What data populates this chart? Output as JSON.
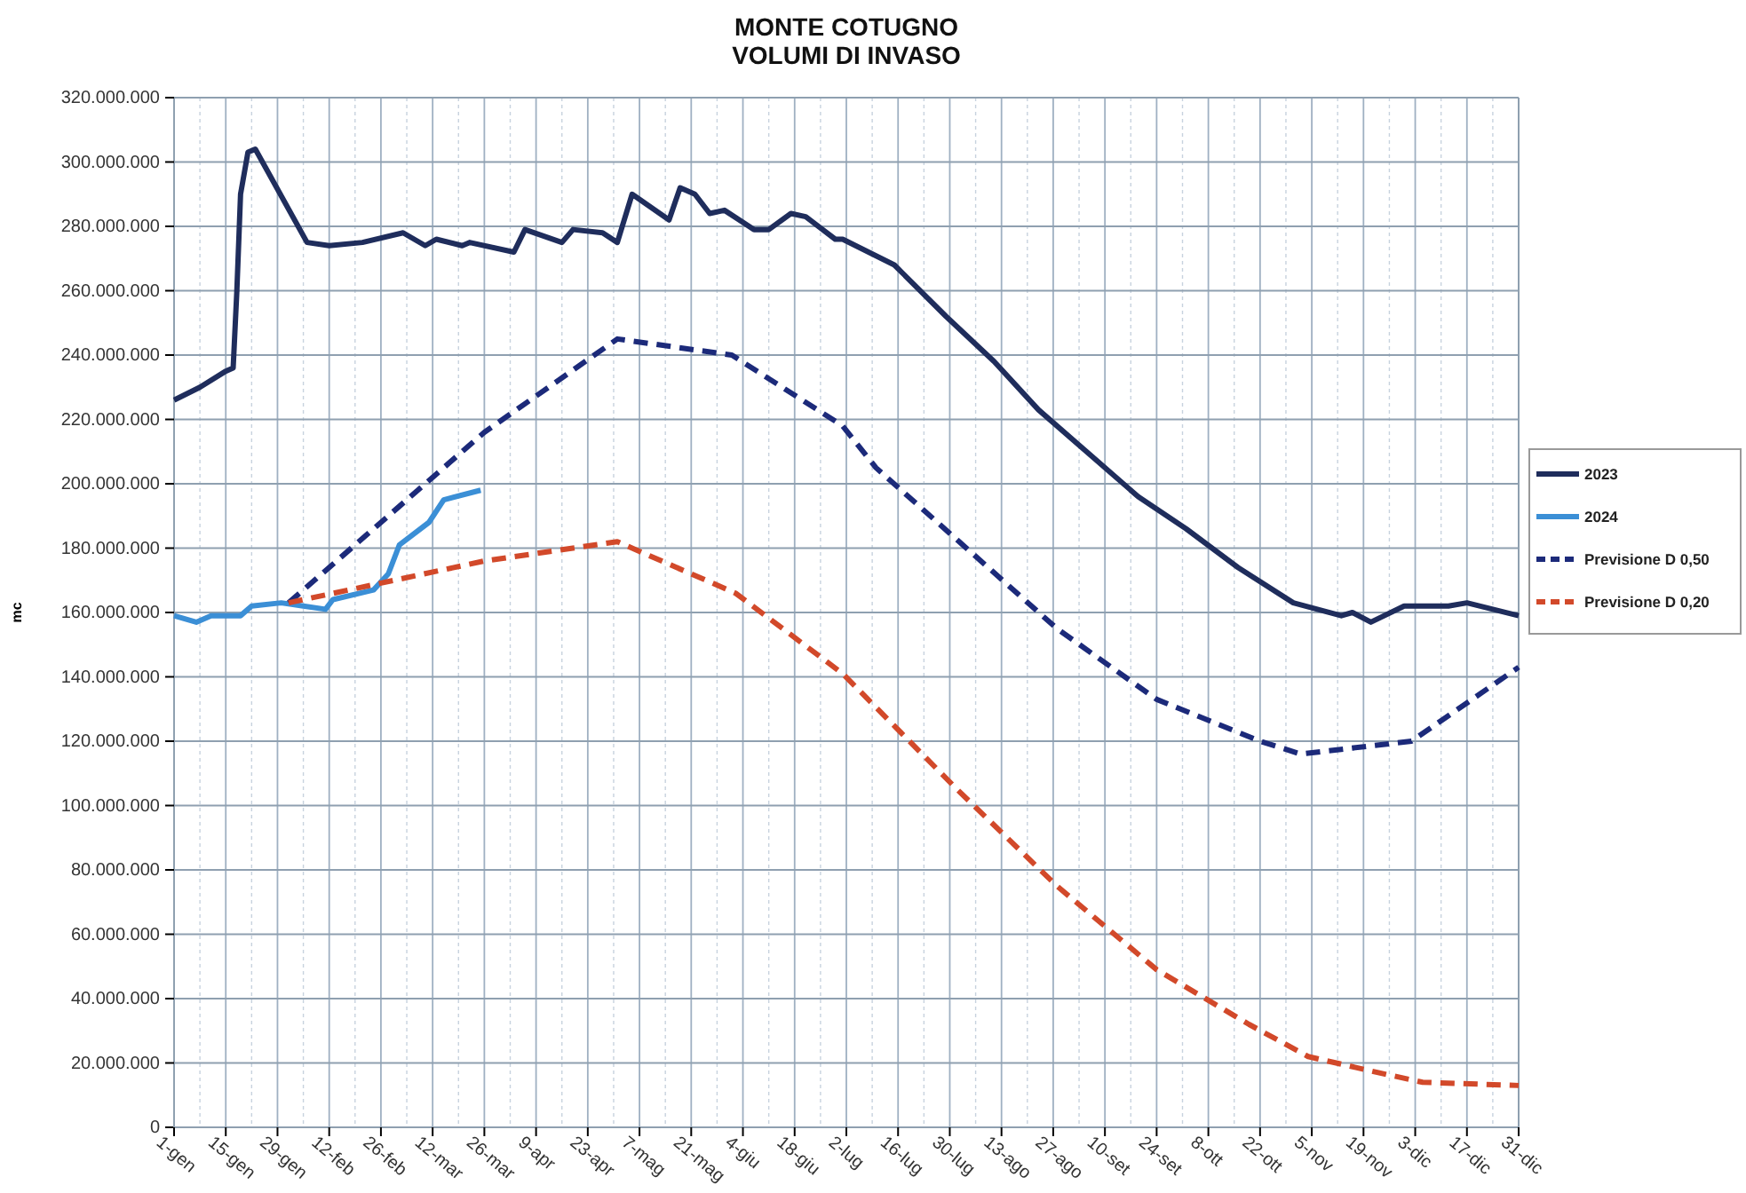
{
  "chart_data": {
    "type": "line",
    "title": "MONTE COTUGNO\nVOLUMI DI INVASO",
    "ylabel": "mc",
    "xlim": [
      "--01-01",
      "--12-31"
    ],
    "xticks": [
      {
        "value": "--01-01",
        "label": "1-gen"
      },
      {
        "value": "--01-15",
        "label": "15-gen"
      },
      {
        "value": "--01-29",
        "label": "29-gen"
      },
      {
        "value": "--02-12",
        "label": "12-feb"
      },
      {
        "value": "--02-26",
        "label": "26-feb"
      },
      {
        "value": "--03-12",
        "label": "12-mar"
      },
      {
        "value": "--03-26",
        "label": "26-mar"
      },
      {
        "value": "--04-09",
        "label": "9-apr"
      },
      {
        "value": "--04-23",
        "label": "23-apr"
      },
      {
        "value": "--05-07",
        "label": "7-mag"
      },
      {
        "value": "--05-21",
        "label": "21-mag"
      },
      {
        "value": "--06-04",
        "label": "4-giu"
      },
      {
        "value": "--06-18",
        "label": "18-giu"
      },
      {
        "value": "--07-02",
        "label": "2-lug"
      },
      {
        "value": "--07-16",
        "label": "16-lug"
      },
      {
        "value": "--07-30",
        "label": "30-lug"
      },
      {
        "value": "--08-13",
        "label": "13-ago"
      },
      {
        "value": "--08-27",
        "label": "27-ago"
      },
      {
        "value": "--09-10",
        "label": "10-set"
      },
      {
        "value": "--09-24",
        "label": "24-set"
      },
      {
        "value": "--10-08",
        "label": "8-ott"
      },
      {
        "value": "--10-22",
        "label": "22-ott"
      },
      {
        "value": "--11-05",
        "label": "5-nov"
      },
      {
        "value": "--11-19",
        "label": "19-nov"
      },
      {
        "value": "--12-03",
        "label": "3-dic"
      },
      {
        "value": "--12-17",
        "label": "17-dic"
      },
      {
        "value": "--12-31",
        "label": "31-dic"
      }
    ],
    "ylim": [
      0,
      320000000
    ],
    "yticks": [
      0,
      {
        "value": 20000000,
        "label": "20.000.000"
      },
      {
        "value": 40000000,
        "label": "40.000.000"
      },
      {
        "value": 60000000,
        "label": "60.000.000"
      },
      {
        "value": 80000000,
        "label": "80.000.000"
      },
      {
        "value": 100000000,
        "label": "100.000.000"
      },
      {
        "value": 120000000,
        "label": "120.000.000"
      },
      {
        "value": 140000000,
        "label": "140.000.000"
      },
      {
        "value": 160000000,
        "label": "160.000.000"
      },
      {
        "value": 180000000,
        "label": "180.000.000"
      },
      {
        "value": 200000000,
        "label": "200.000.000"
      },
      {
        "value": 220000000,
        "label": "220.000.000"
      },
      {
        "value": 240000000,
        "label": "240.000.000"
      },
      {
        "value": 260000000,
        "label": "260.000.000"
      },
      {
        "value": 280000000,
        "label": "280.000.000"
      },
      {
        "value": 300000000,
        "label": "300.000.000"
      },
      {
        "value": 320000000,
        "label": "320.000.000"
      }
    ],
    "grid": true,
    "legend": "right",
    "marker": "none",
    "series": [
      {
        "name": "2023",
        "color": "#1f2d5c",
        "line_style": "solid",
        "x": [
          "--01-01",
          "--01-08",
          "--01-15",
          "--01-17",
          "--01-18",
          "--01-19",
          "--01-21",
          "--01-23",
          "--02-06",
          "--02-12",
          "--02-21",
          "--03-04",
          "--03-10",
          "--03-13",
          "--03-20",
          "--03-22",
          "--04-03",
          "--04-06",
          "--04-16",
          "--04-19",
          "--04-27",
          "--05-01",
          "--05-05",
          "--05-15",
          "--05-18",
          "--05-22",
          "--05-26",
          "--05-30",
          "--06-07",
          "--06-11",
          "--06-17",
          "--06-21",
          "--06-29",
          "--07-01",
          "--07-15",
          "--07-29",
          "--08-11",
          "--08-23",
          "--09-05",
          "--09-19",
          "--10-02",
          "--10-16",
          "--10-31",
          "--11-13",
          "--11-16",
          "--11-21",
          "--11-30",
          "--12-12",
          "--12-17",
          "--12-31"
        ],
        "values": [
          226000000,
          230000000,
          235000000,
          236000000,
          260000000,
          290000000,
          303000000,
          304000000,
          275000000,
          274000000,
          275000000,
          278000000,
          274000000,
          276000000,
          274000000,
          275000000,
          272000000,
          279000000,
          275000000,
          279000000,
          278000000,
          275000000,
          290000000,
          282000000,
          292000000,
          290000000,
          284000000,
          285000000,
          279000000,
          279000000,
          284000000,
          283000000,
          276000000,
          276000000,
          268000000,
          252000000,
          238000000,
          223000000,
          210000000,
          196000000,
          186000000,
          174000000,
          163000000,
          159000000,
          160000000,
          157000000,
          162000000,
          162000000,
          163000000,
          159000000
        ]
      },
      {
        "name": "2024",
        "color": "#3b8fd6",
        "line_style": "solid",
        "x": [
          "--01-01",
          "--01-07",
          "--01-11",
          "--01-19",
          "--01-22",
          "--01-30",
          "--02-05",
          "--02-11",
          "--02-13",
          "--02-24",
          "--02-28",
          "--03-03",
          "--03-11",
          "--03-15",
          "--03-25"
        ],
        "values": [
          159000000,
          157000000,
          159000000,
          159000000,
          162000000,
          163000000,
          162000000,
          161000000,
          164000000,
          167000000,
          172000000,
          181000000,
          188000000,
          195000000,
          198000000
        ]
      },
      {
        "name": "Previsione D 0,50",
        "color": "#1c2a7a",
        "line_style": "dashed",
        "x": [
          "--02-01",
          "--03-26",
          "--05-01",
          "--06-01",
          "--07-01",
          "--07-10",
          "--08-28",
          "--09-24",
          "--10-22",
          "--11-02",
          "--12-02",
          "--12-31"
        ],
        "values": [
          163000000,
          216000000,
          245000000,
          240000000,
          218000000,
          205000000,
          155000000,
          133000000,
          120000000,
          116000000,
          120000000,
          143000000
        ]
      },
      {
        "name": "Previsione D 0,20",
        "color": "#d2492a",
        "line_style": "dashed",
        "x": [
          "--02-01",
          "--03-26",
          "--05-01",
          "--06-02",
          "--07-01",
          "--08-01",
          "--08-28",
          "--09-24",
          "--10-19",
          "--11-04",
          "--11-23",
          "--12-05",
          "--12-31"
        ],
        "values": [
          163000000,
          176000000,
          182000000,
          166000000,
          141000000,
          105000000,
          75000000,
          49000000,
          32000000,
          22000000,
          17000000,
          14000000,
          13000000
        ]
      }
    ]
  }
}
